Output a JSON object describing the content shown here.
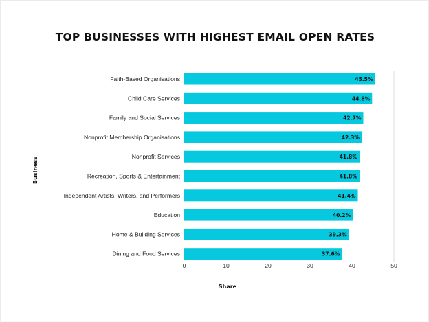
{
  "chart_data": {
    "type": "bar",
    "orientation": "horizontal",
    "title": "TOP BUSINESSES WITH HIGHEST EMAIL OPEN RATES",
    "xlabel": "Share",
    "ylabel": "Business",
    "xlim": [
      0,
      50
    ],
    "xticks": [
      "0",
      "10",
      "20",
      "30",
      "40",
      "50"
    ],
    "grid": "vertical-gridline-at-max",
    "bar_color": "#06c8de",
    "categories": [
      "Faith-Based Organisations",
      "Child Care Services",
      "Family and Social Services",
      "Nonprofit Membership Organisations",
      "Nonprofit Services",
      "Recreation, Sports & Entertainment",
      "Independent Artists, Writers, and Performers",
      "Education",
      "Home & Building Services",
      "Dining and Food Services"
    ],
    "values": [
      45.5,
      44.8,
      42.7,
      42.3,
      41.8,
      41.8,
      41.4,
      40.2,
      39.3,
      37.6
    ],
    "value_labels": [
      "45.5%",
      "44.8%",
      "42.7%",
      "42.3%",
      "41.8%",
      "41.8%",
      "41.4%",
      "40.2%",
      "39.3%",
      "37.6%"
    ]
  }
}
